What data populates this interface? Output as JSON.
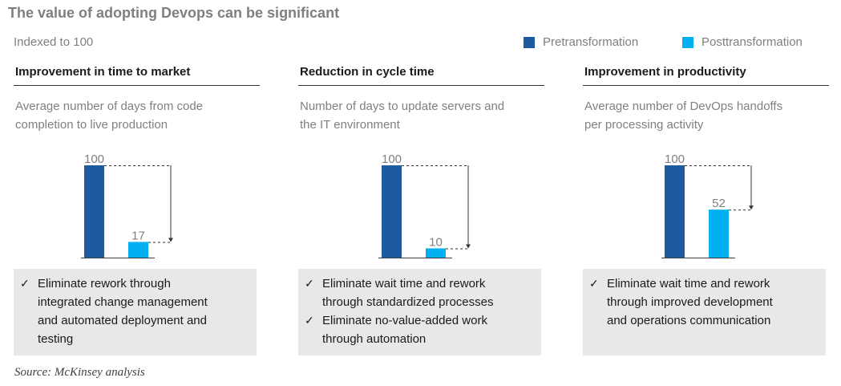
{
  "title": "The value of adopting Devops can be significant",
  "subtitle": "Indexed to 100",
  "legend": {
    "pre": {
      "label": "Pretransformation",
      "color": "#1f5aa0"
    },
    "post": {
      "label": "Posttransformation",
      "color": "#00b0f0"
    }
  },
  "source": "Source: McKinsey analysis",
  "panels": [
    {
      "title": "Improvement in time to market",
      "desc_lines": [
        "Average number of days from code",
        "completion to live production"
      ],
      "notes": [
        [
          "Eliminate rework through",
          "integrated change management",
          "and automated deployment and",
          "testing"
        ]
      ]
    },
    {
      "title": "Reduction in cycle time",
      "desc_lines": [
        "Number of days to update servers and",
        "the IT environment"
      ],
      "notes": [
        [
          "Eliminate wait time and rework",
          "through standardized processes"
        ],
        [
          "Eliminate no-value-added work",
          "through automation"
        ]
      ]
    },
    {
      "title": "Improvement in productivity",
      "desc_lines": [
        "Average number of DevOps handoffs",
        "per processing activity"
      ],
      "notes": [
        [
          "Eliminate wait time and rework",
          "through improved development",
          "and operations communication"
        ]
      ]
    }
  ],
  "chart_data": [
    {
      "type": "bar",
      "categories": [
        "Pretransformation",
        "Posttransformation"
      ],
      "values": [
        100,
        17
      ],
      "ylim": [
        0,
        100
      ]
    },
    {
      "type": "bar",
      "categories": [
        "Pretransformation",
        "Posttransformation"
      ],
      "values": [
        100,
        10
      ],
      "ylim": [
        0,
        100
      ]
    },
    {
      "type": "bar",
      "categories": [
        "Pretransformation",
        "Posttransformation"
      ],
      "values": [
        100,
        52
      ],
      "ylim": [
        0,
        100
      ]
    }
  ]
}
